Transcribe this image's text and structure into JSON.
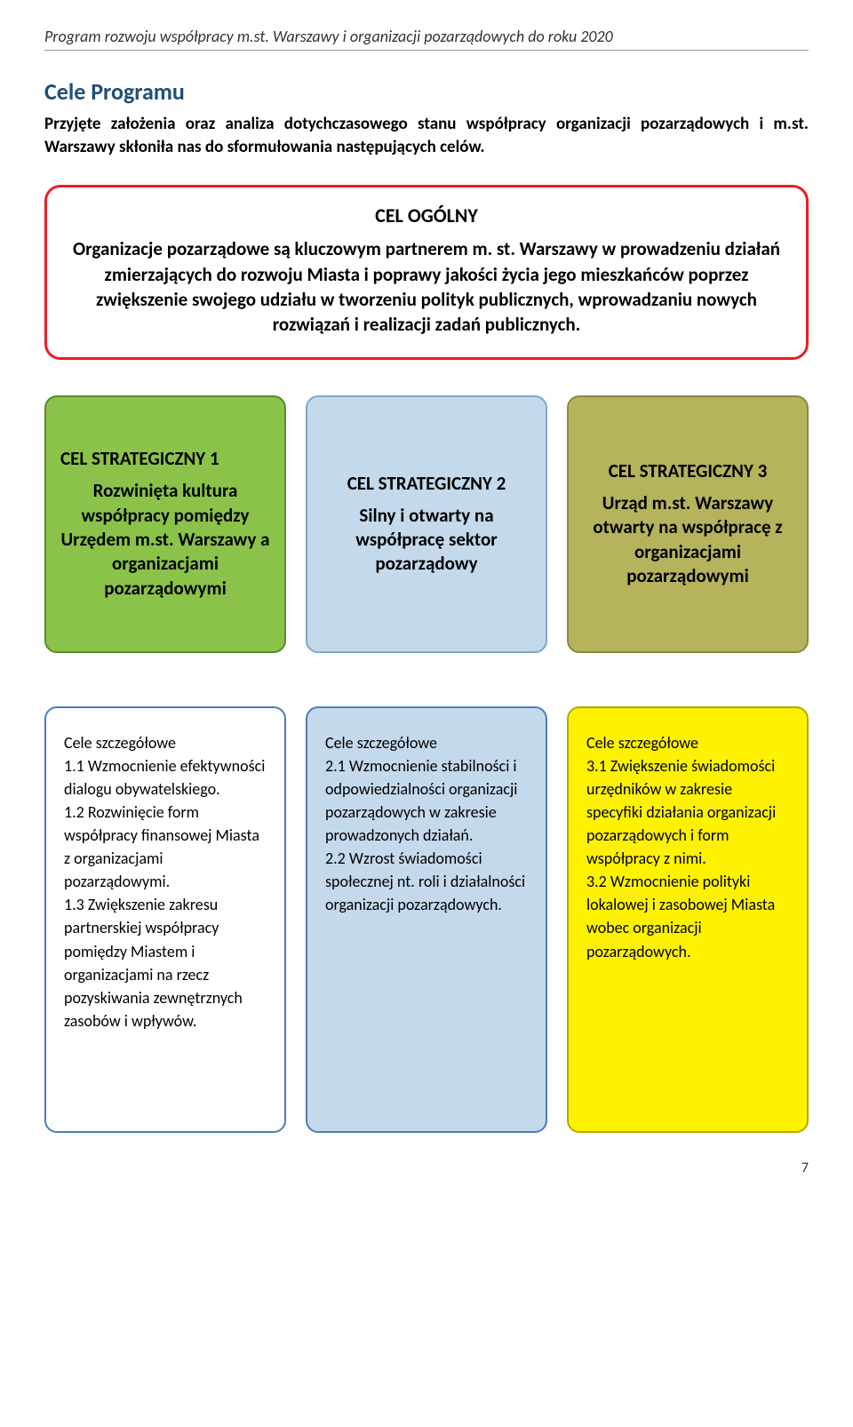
{
  "header": "Program rozwoju współpracy m.st. Warszawy i organizacji pozarządowych do roku 2020",
  "sectionTitle": "Cele Programu",
  "intro": "Przyjęte założenia oraz analiza dotychczasowego stanu współpracy organizacji pozarządowych i m.st. Warszawy skłoniła nas do sformułowania następujących celów.",
  "general": {
    "title": "CEL OGÓLNY",
    "body": "Organizacje pozarządowe są kluczowym partnerem m. st. Warszawy w prowadzeniu działań zmierzających do rozwoju Miasta i poprawy jakości życia jego mieszkańców poprzez zwiększenie swojego udziału w tworzeniu polityk publicznych, wprowadzaniu nowych rozwiązań i realizacji zadań publicznych.",
    "borderColor": "#ed1c24"
  },
  "strategic": [
    {
      "title": "CEL STRATEGICZNY 1",
      "body": "Rozwinięta kultura współpracy pomiędzy Urzędem m.st. Warszawy a organizacjami pozarządowymi",
      "bg": "#8bc34a",
      "border": "#5a8a2e",
      "leftAlign": true
    },
    {
      "title": "CEL STRATEGICZNY 2",
      "body": "Silny i otwarty na współpracę sektor pozarządowy",
      "bg": "#c5d9ed",
      "border": "#7fa6cc",
      "leftAlign": false
    },
    {
      "title": "CEL STRATEGICZNY 3",
      "body": "Urząd m.st. Warszawy otwarty na współpracę z organizacjami pozarządowymi",
      "bg": "#b5b35c",
      "border": "#8a883e",
      "leftAlign": false
    }
  ],
  "detailed": [
    {
      "bg": "#ffffff",
      "border": "#4a7ebb",
      "heading": "Cele szczegółowe",
      "items": [
        "1.1 Wzmocnienie efektywności dialogu obywatelskiego.",
        "1.2 Rozwinięcie form współpracy finansowej Miasta z organizacjami pozarządowymi.",
        "1.3 Zwiększenie zakresu partnerskiej współpracy pomiędzy Miastem i organizacjami na rzecz pozyskiwania zewnętrznych zasobów i wpływów."
      ]
    },
    {
      "bg": "#c5d9ed",
      "border": "#4a7ebb",
      "heading": "Cele szczegółowe",
      "items": [
        "2.1 Wzmocnienie stabilności i odpowiedzialności organizacji pozarządowych w zakresie prowadzonych działań.",
        "2.2 Wzrost świadomości społecznej nt. roli i działalności organizacji pozarządowych."
      ]
    },
    {
      "bg": "#fff200",
      "border": "#b5a900",
      "heading": "Cele szczegółowe",
      "items": [
        "3.1 Zwiększenie świadomości urzędników w zakresie specyfiki działania organizacji pozarządowych i form współpracy z nimi.",
        "3.2 Wzmocnienie polityki lokalowej i zasobowej Miasta wobec organizacji pozarządowych."
      ]
    }
  ],
  "pageNumber": "7"
}
